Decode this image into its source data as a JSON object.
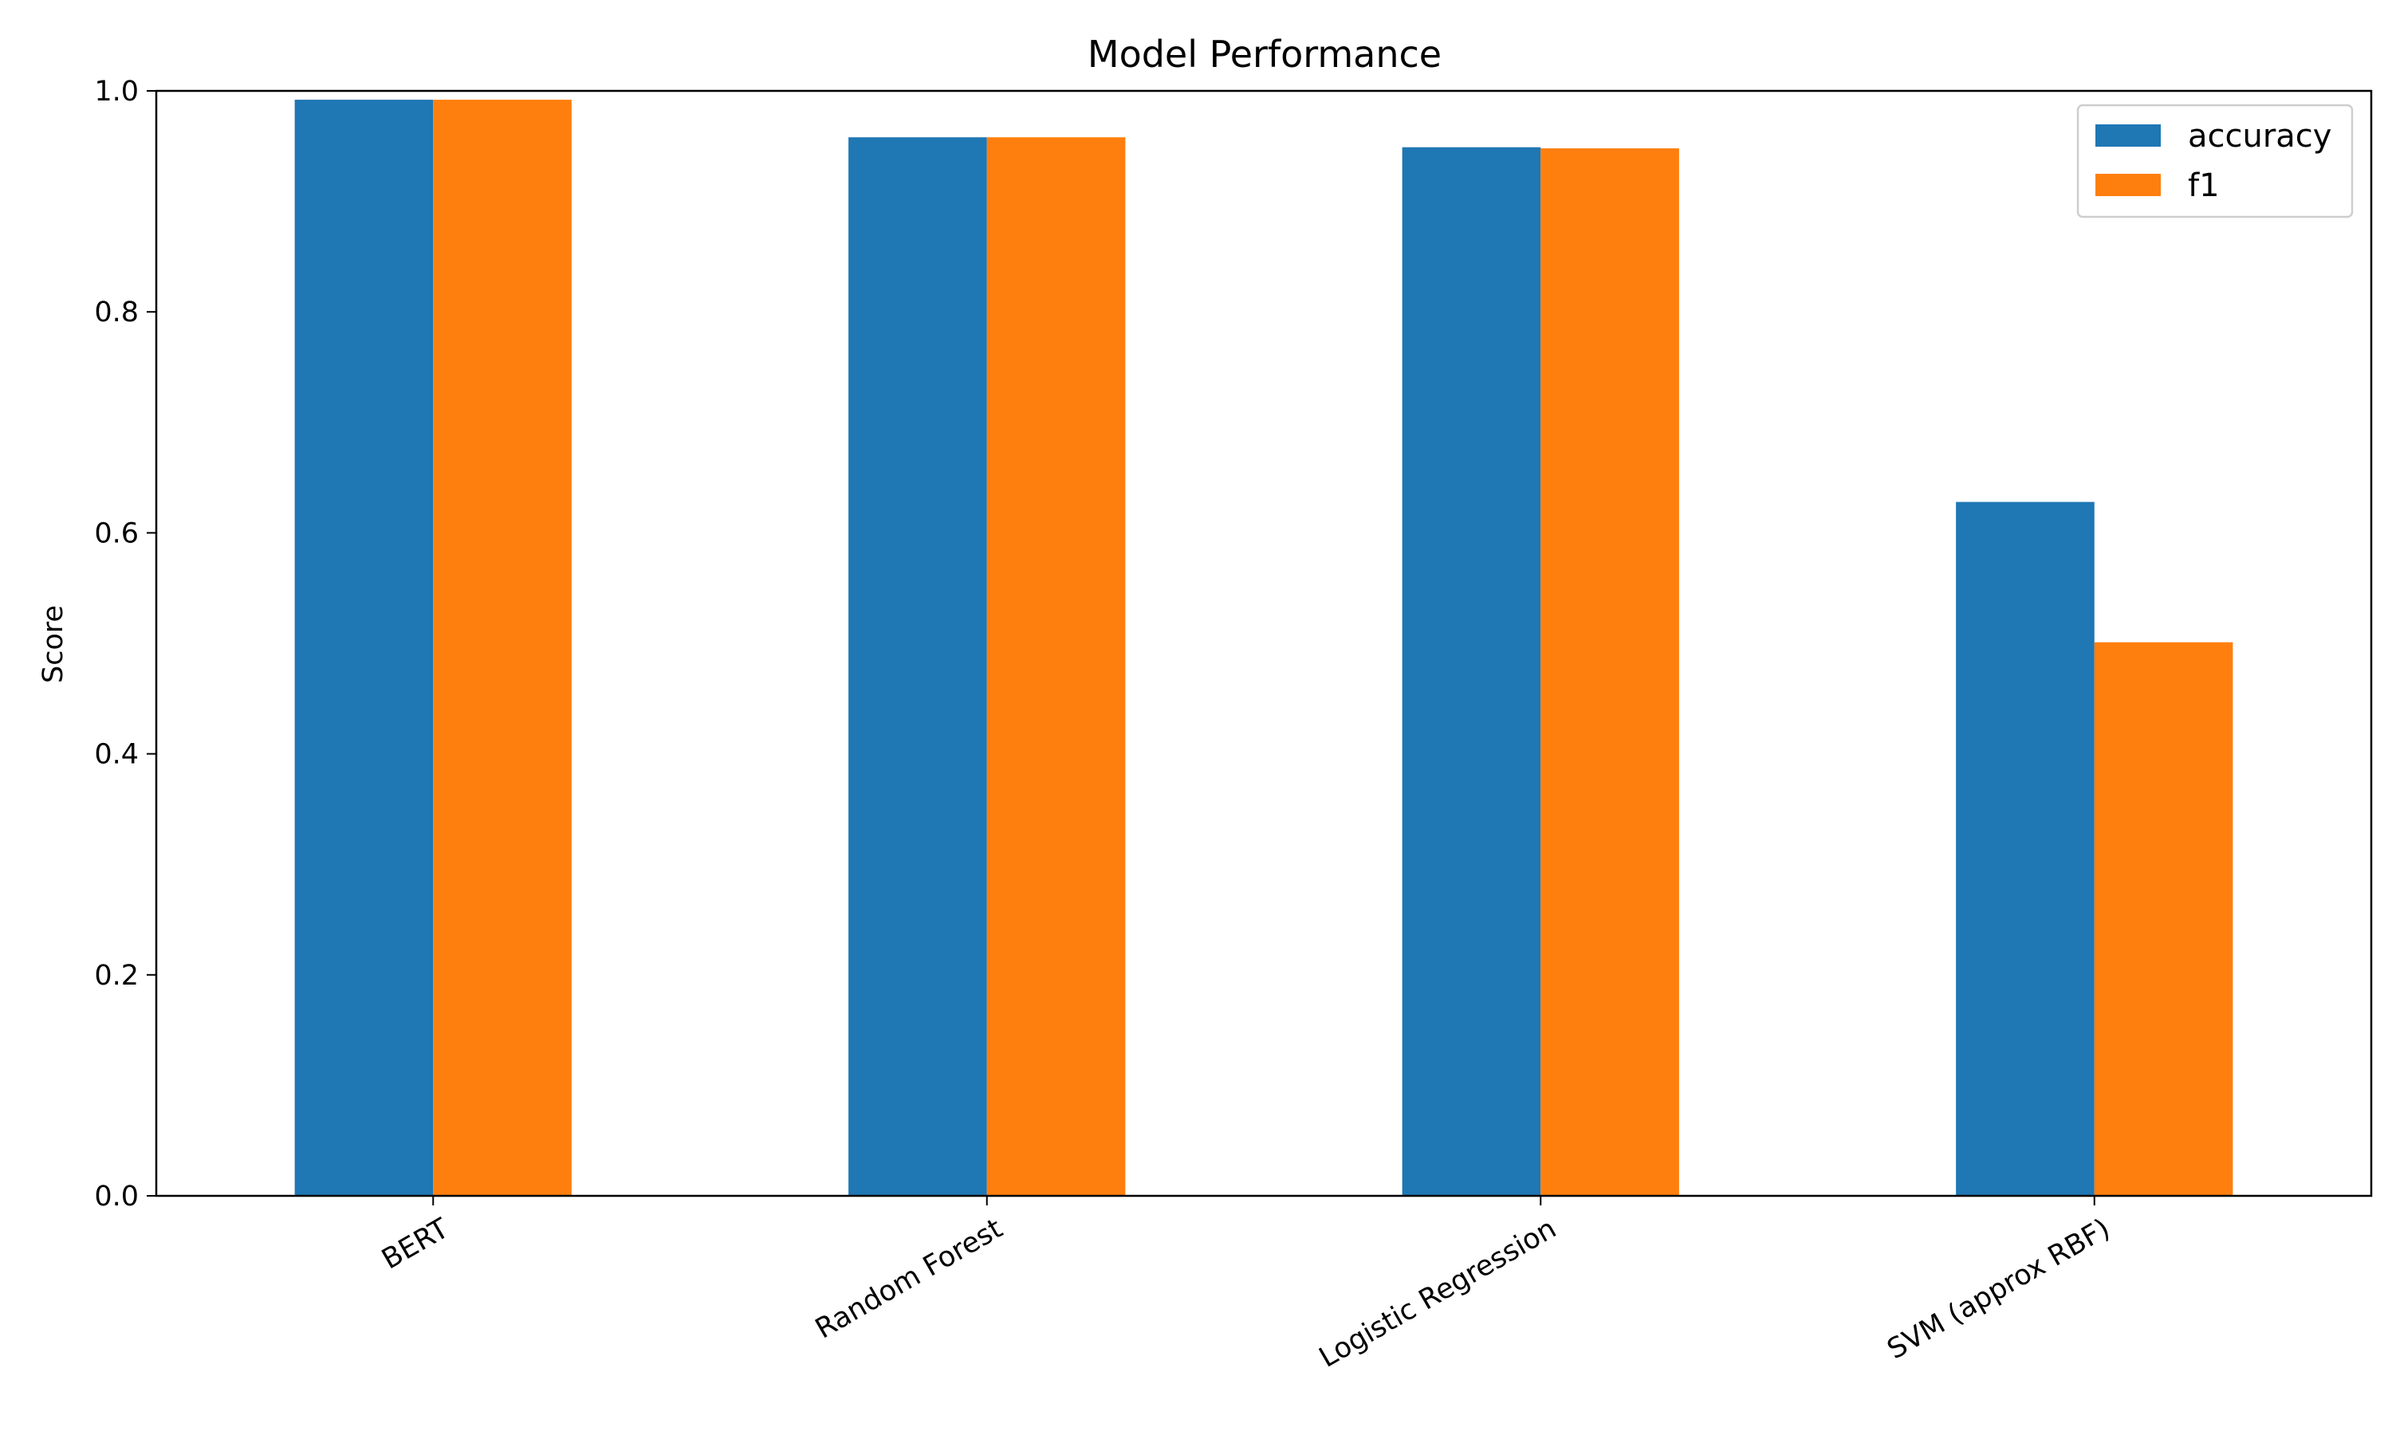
{
  "chart_data": {
    "type": "bar",
    "title": "Model Performance",
    "xlabel": "",
    "ylabel": "Score",
    "ylim": [
      0,
      1.0
    ],
    "yticks": [
      0.0,
      0.2,
      0.4,
      0.6,
      0.8,
      1.0
    ],
    "ytick_labels": [
      "0.0",
      "0.2",
      "0.4",
      "0.6",
      "0.8",
      "1.0"
    ],
    "categories": [
      "BERT",
      "Random Forest",
      "Logistic Regression",
      "SVM (approx RBF)"
    ],
    "series": [
      {
        "name": "accuracy",
        "color": "#1f77b4",
        "values": [
          0.992,
          0.958,
          0.949,
          0.628
        ]
      },
      {
        "name": "f1",
        "color": "#ff7f0e",
        "values": [
          0.992,
          0.958,
          0.948,
          0.501
        ]
      }
    ],
    "legend": {
      "position": "top-right"
    },
    "grid": false
  }
}
